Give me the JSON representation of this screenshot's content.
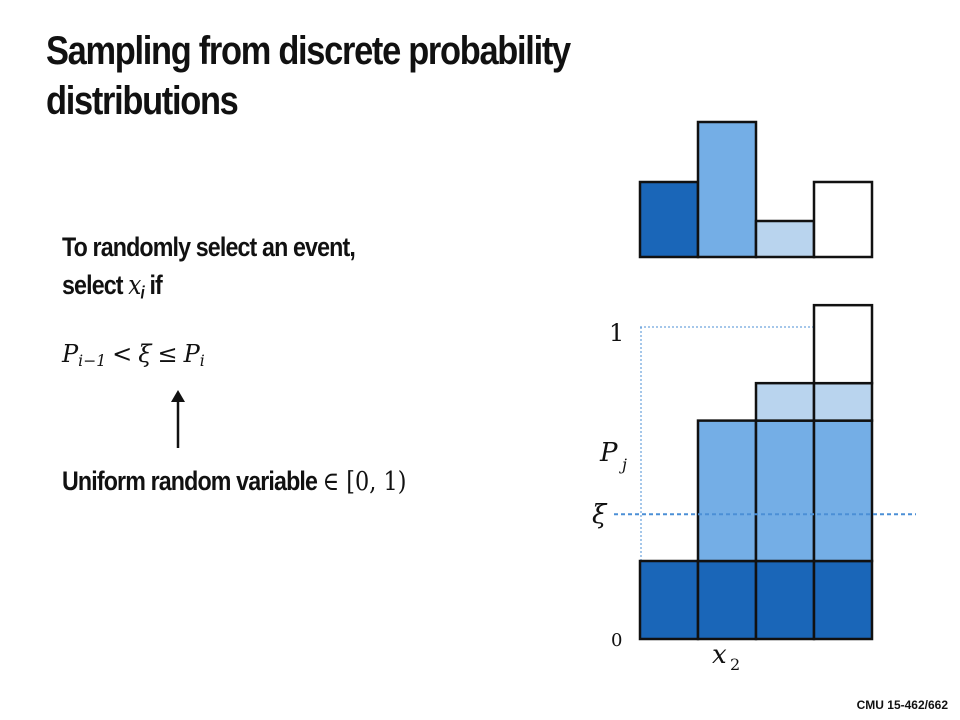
{
  "slide": {
    "title_line1": "Sampling from discrete probability",
    "title_line2": "distributions",
    "bullet_line1": "To randomly select an event,",
    "bullet_line2_prefix": "select ",
    "bullet_var": "x",
    "bullet_var_sub": "i",
    "bullet_line2_suffix": " if",
    "formula": {
      "lhs": "P",
      "lhs_sub": "i−1",
      "op1": "<",
      "xi": "ξ",
      "op2": "≤",
      "rhs": "P",
      "rhs_sub": "i"
    },
    "uniform_label": "Uniform random variable ",
    "uniform_math": "∈ [0, 1)",
    "footer": "CMU 15-462/662"
  },
  "chart_data": [
    {
      "type": "bar",
      "description_none": "",
      "values": [
        0.25,
        0.45,
        0.12,
        0.25
      ],
      "colors": [
        "#1a66b8",
        "#74aee6",
        "#b9d4ee",
        "#ffffff"
      ]
    },
    {
      "type": "bar",
      "stacked": true,
      "ylim": [
        0,
        1
      ],
      "tick_labels": {
        "top": "1",
        "bottom": "0"
      },
      "annotations": {
        "pj": "P",
        "pj_sub": "j",
        "xi": "ξ",
        "x2": "x",
        "x2_sub": "2"
      },
      "segments": [
        [
          0.25
        ],
        [
          0.25,
          0.45
        ],
        [
          0.25,
          0.45,
          0.12
        ],
        [
          0.25,
          0.45,
          0.12,
          0.25
        ]
      ],
      "xi_value": 0.4,
      "colors": [
        "#1a66b8",
        "#74aee6",
        "#b9d4ee",
        "#ffffff"
      ]
    }
  ]
}
